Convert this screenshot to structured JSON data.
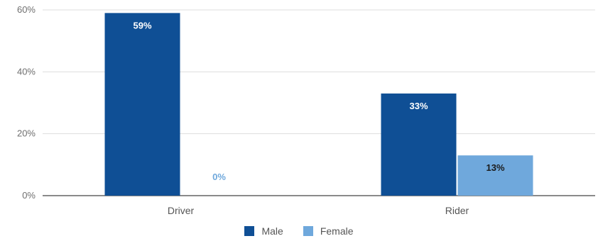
{
  "chart_data": {
    "type": "bar",
    "categories": [
      "Driver",
      "Rider"
    ],
    "series": [
      {
        "name": "Male",
        "values": [
          59,
          33
        ],
        "labels": [
          "59%",
          "33%"
        ],
        "color": "#0f4f95",
        "label_color": "#ffffff"
      },
      {
        "name": "Female",
        "values": [
          0,
          13
        ],
        "labels": [
          "0%",
          "13%"
        ],
        "color": "#6fa8dc",
        "label_color": "#6fa8dc"
      }
    ],
    "ylim": [
      0,
      60
    ],
    "yticks": [
      0,
      20,
      40,
      60
    ],
    "ytick_labels": [
      "0%",
      "20%",
      "40%",
      "60%"
    ],
    "grid": true,
    "legend": "bottom",
    "title": "",
    "xlabel": "",
    "ylabel": ""
  }
}
